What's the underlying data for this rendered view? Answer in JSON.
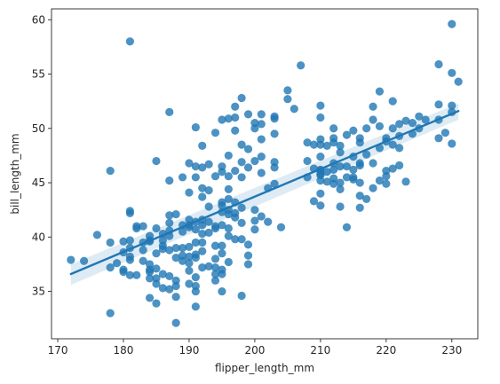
{
  "chart_data": {
    "type": "scatter",
    "title": "",
    "xlabel": "flipper_length_mm",
    "ylabel": "bill_length_mm",
    "xlim": [
      169.05,
      233.95
    ],
    "ylim": [
      30.64,
      61.0
    ],
    "xticks": [
      170,
      180,
      190,
      200,
      210,
      220,
      230
    ],
    "yticks": [
      35,
      40,
      45,
      50,
      55,
      60
    ],
    "grid": false,
    "legend": "none",
    "colors": {
      "points": "#1f77b4",
      "line": "#1f77b4",
      "band": "#1f77b4"
    },
    "regression": {
      "x": [
        172,
        231
      ],
      "y": [
        36.6,
        51.6
      ],
      "ci_upper": [
        37.5,
        52.3
      ],
      "ci_lower": [
        35.6,
        50.8
      ]
    },
    "points": [
      [
        172,
        37.9
      ],
      [
        174,
        37.8
      ],
      [
        176,
        40.2
      ],
      [
        178,
        39.5
      ],
      [
        178,
        46.1
      ],
      [
        178,
        33.0
      ],
      [
        178,
        37.2
      ],
      [
        179,
        37.6
      ],
      [
        180,
        36.8
      ],
      [
        180,
        37.0
      ],
      [
        180,
        38.6
      ],
      [
        180,
        39.6
      ],
      [
        181,
        42.2
      ],
      [
        181,
        37.9
      ],
      [
        181,
        58.0
      ],
      [
        181,
        42.4
      ],
      [
        181,
        39.0
      ],
      [
        181,
        36.5
      ],
      [
        181,
        38.2
      ],
      [
        181,
        39.7
      ],
      [
        182,
        40.8
      ],
      [
        182,
        41.0
      ],
      [
        182,
        36.5
      ],
      [
        183,
        39.5
      ],
      [
        183,
        37.8
      ],
      [
        183,
        41.0
      ],
      [
        183,
        38.8
      ],
      [
        184,
        40.1
      ],
      [
        184,
        39.6
      ],
      [
        184,
        37.5
      ],
      [
        184,
        34.4
      ],
      [
        184,
        36.2
      ],
      [
        184,
        39.7
      ],
      [
        184,
        36.8
      ],
      [
        184,
        37.0
      ],
      [
        185,
        47.0
      ],
      [
        185,
        40.8
      ],
      [
        185,
        38.5
      ],
      [
        185,
        35.7
      ],
      [
        185,
        33.9
      ],
      [
        185,
        36.2
      ],
      [
        185,
        37.1
      ],
      [
        186,
        39.7
      ],
      [
        186,
        39.2
      ],
      [
        186,
        36.6
      ],
      [
        186,
        35.3
      ],
      [
        186,
        40.3
      ],
      [
        186,
        38.9
      ],
      [
        187,
        40.6
      ],
      [
        187,
        35.2
      ],
      [
        187,
        41.3
      ],
      [
        187,
        42.0
      ],
      [
        187,
        38.8
      ],
      [
        187,
        45.2
      ],
      [
        187,
        36.4
      ],
      [
        187,
        40.1
      ],
      [
        187,
        51.5
      ],
      [
        188,
        42.1
      ],
      [
        188,
        36.0
      ],
      [
        188,
        38.1
      ],
      [
        188,
        35.5
      ],
      [
        188,
        39.0
      ],
      [
        188,
        34.5
      ],
      [
        188,
        32.1
      ],
      [
        189,
        45.5
      ],
      [
        189,
        38.3
      ],
      [
        189,
        37.8
      ],
      [
        189,
        40.5
      ],
      [
        189,
        39.0
      ],
      [
        189,
        41.1
      ],
      [
        190,
        41.1
      ],
      [
        190,
        36.9
      ],
      [
        190,
        46.8
      ],
      [
        190,
        38.2
      ],
      [
        190,
        35.7
      ],
      [
        190,
        39.1
      ],
      [
        190,
        40.9
      ],
      [
        190,
        41.6
      ],
      [
        190,
        37.6
      ],
      [
        190,
        44.1
      ],
      [
        191,
        50.1
      ],
      [
        191,
        36.3
      ],
      [
        191,
        38.4
      ],
      [
        191,
        39.5
      ],
      [
        191,
        35.0
      ],
      [
        191,
        41.4
      ],
      [
        191,
        40.7
      ],
      [
        191,
        35.5
      ],
      [
        191,
        46.5
      ],
      [
        191,
        33.6
      ],
      [
        191,
        45.5
      ],
      [
        191,
        38.1
      ],
      [
        192,
        46.4
      ],
      [
        192,
        40.3
      ],
      [
        192,
        38.7
      ],
      [
        192,
        41.1
      ],
      [
        192,
        48.4
      ],
      [
        192,
        37.2
      ],
      [
        192,
        39.5
      ],
      [
        192,
        44.5
      ],
      [
        192,
        43.7
      ],
      [
        192,
        41.6
      ],
      [
        193,
        46.7
      ],
      [
        193,
        40.4
      ],
      [
        193,
        37.3
      ],
      [
        193,
        42.8
      ],
      [
        193,
        44.3
      ],
      [
        193,
        41.4
      ],
      [
        194,
        49.6
      ],
      [
        194,
        36.6
      ],
      [
        194,
        37.2
      ],
      [
        194,
        39.2
      ],
      [
        194,
        41.0
      ],
      [
        194,
        45.6
      ],
      [
        194,
        40.8
      ],
      [
        194,
        38.0
      ],
      [
        194,
        36.0
      ],
      [
        195,
        50.8
      ],
      [
        195,
        42.9
      ],
      [
        195,
        46.5
      ],
      [
        195,
        38.5
      ],
      [
        195,
        43.2
      ],
      [
        195,
        41.1
      ],
      [
        195,
        39.2
      ],
      [
        195,
        46.0
      ],
      [
        195,
        37.0
      ],
      [
        195,
        35.0
      ],
      [
        195,
        42.3
      ],
      [
        195,
        36.6
      ],
      [
        196,
        50.9
      ],
      [
        196,
        47.5
      ],
      [
        196,
        40.8
      ],
      [
        196,
        42.5
      ],
      [
        196,
        45.6
      ],
      [
        196,
        43.5
      ],
      [
        196,
        42.1
      ],
      [
        196,
        37.7
      ],
      [
        196,
        40.1
      ],
      [
        196,
        44.4
      ],
      [
        197,
        49.8
      ],
      [
        197,
        43.2
      ],
      [
        197,
        52.0
      ],
      [
        197,
        46.1
      ],
      [
        197,
        42.2
      ],
      [
        197,
        51.0
      ],
      [
        197,
        39.8
      ],
      [
        197,
        41.8
      ],
      [
        198,
        45.5
      ],
      [
        198,
        46.9
      ],
      [
        198,
        52.8
      ],
      [
        198,
        48.5
      ],
      [
        198,
        42.7
      ],
      [
        198,
        41.3
      ],
      [
        198,
        39.8
      ],
      [
        198,
        34.6
      ],
      [
        199,
        51.3
      ],
      [
        199,
        46.4
      ],
      [
        199,
        48.1
      ],
      [
        199,
        38.3
      ],
      [
        199,
        39.3
      ],
      [
        199,
        37.5
      ],
      [
        200,
        50.0
      ],
      [
        200,
        47.0
      ],
      [
        200,
        41.5
      ],
      [
        200,
        40.7
      ],
      [
        200,
        50.5
      ],
      [
        200,
        42.5
      ],
      [
        201,
        51.3
      ],
      [
        201,
        50.4
      ],
      [
        201,
        49.0
      ],
      [
        201,
        47.4
      ],
      [
        201,
        41.9
      ],
      [
        201,
        45.9
      ],
      [
        202,
        44.5
      ],
      [
        202,
        41.4
      ],
      [
        203,
        50.9
      ],
      [
        203,
        49.5
      ],
      [
        203,
        51.1
      ],
      [
        203,
        46.4
      ],
      [
        203,
        44.9
      ],
      [
        203,
        46.9
      ],
      [
        204,
        40.9
      ],
      [
        205,
        53.5
      ],
      [
        205,
        52.7
      ],
      [
        206,
        51.8
      ],
      [
        207,
        55.8
      ],
      [
        208,
        45.5
      ],
      [
        208,
        48.7
      ],
      [
        208,
        47.0
      ],
      [
        209,
        48.5
      ],
      [
        209,
        43.3
      ],
      [
        209,
        46.3
      ],
      [
        210,
        45.8
      ],
      [
        210,
        52.1
      ],
      [
        210,
        46.2
      ],
      [
        210,
        51.0
      ],
      [
        210,
        47.4
      ],
      [
        210,
        48.5
      ],
      [
        210,
        42.9
      ],
      [
        210,
        46.1
      ],
      [
        210,
        45.2
      ],
      [
        210,
        44.0
      ],
      [
        210,
        49.0
      ],
      [
        210,
        45.7
      ],
      [
        211,
        48.4
      ],
      [
        211,
        45.1
      ],
      [
        211,
        46.0
      ],
      [
        212,
        50.0
      ],
      [
        212,
        45.4
      ],
      [
        212,
        48.7
      ],
      [
        212,
        44.9
      ],
      [
        212,
        46.8
      ],
      [
        212,
        49.1
      ],
      [
        212,
        46.2
      ],
      [
        213,
        46.5
      ],
      [
        213,
        48.4
      ],
      [
        213,
        42.8
      ],
      [
        213,
        47.8
      ],
      [
        213,
        45.0
      ],
      [
        213,
        44.4
      ],
      [
        214,
        49.4
      ],
      [
        214,
        46.5
      ],
      [
        214,
        45.5
      ],
      [
        214,
        40.9
      ],
      [
        215,
        49.8
      ],
      [
        215,
        45.3
      ],
      [
        215,
        47.4
      ],
      [
        215,
        46.2
      ],
      [
        215,
        45.5
      ],
      [
        216,
        46.6
      ],
      [
        216,
        49.1
      ],
      [
        216,
        46.8
      ],
      [
        216,
        42.7
      ],
      [
        216,
        43.8
      ],
      [
        216,
        45.0
      ],
      [
        216,
        48.7
      ],
      [
        217,
        50.0
      ],
      [
        217,
        47.6
      ],
      [
        217,
        43.5
      ],
      [
        218,
        52.0
      ],
      [
        218,
        50.8
      ],
      [
        218,
        46.8
      ],
      [
        218,
        44.5
      ],
      [
        219,
        53.4
      ],
      [
        219,
        48.2
      ],
      [
        219,
        50.2
      ],
      [
        219,
        45.2
      ],
      [
        220,
        48.8
      ],
      [
        220,
        45.6
      ],
      [
        220,
        46.1
      ],
      [
        220,
        44.9
      ],
      [
        220,
        49.1
      ],
      [
        221,
        50.0
      ],
      [
        221,
        48.5
      ],
      [
        221,
        46.3
      ],
      [
        221,
        52.5
      ],
      [
        222,
        49.3
      ],
      [
        222,
        50.4
      ],
      [
        222,
        46.6
      ],
      [
        222,
        48.2
      ],
      [
        223,
        50.7
      ],
      [
        223,
        45.1
      ],
      [
        224,
        49.5
      ],
      [
        224,
        50.5
      ],
      [
        225,
        51.1
      ],
      [
        225,
        50.0
      ],
      [
        226,
        50.8
      ],
      [
        228,
        55.9
      ],
      [
        228,
        49.1
      ],
      [
        228,
        52.2
      ],
      [
        228,
        50.8
      ],
      [
        229,
        49.6
      ],
      [
        230,
        59.6
      ],
      [
        230,
        55.1
      ],
      [
        230,
        51.5
      ],
      [
        230,
        48.6
      ],
      [
        230,
        52.1
      ],
      [
        231,
        54.3
      ]
    ]
  }
}
